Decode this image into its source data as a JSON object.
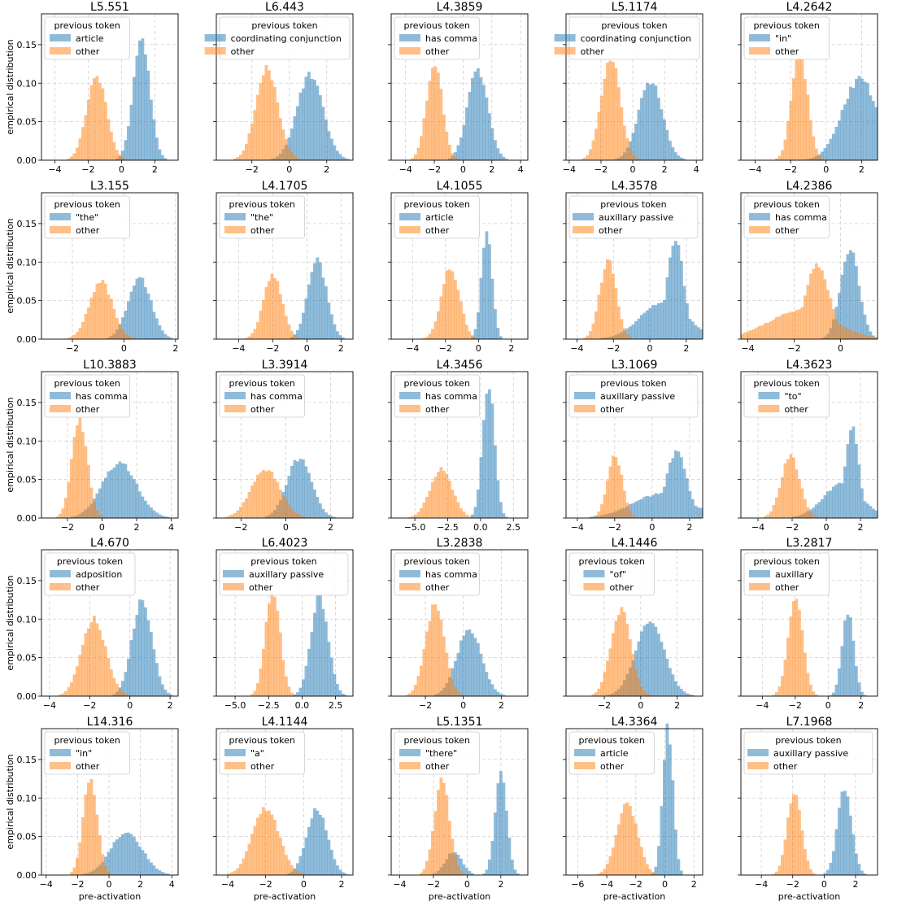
{
  "figure": {
    "ylabel": "empirical distribution",
    "xlabel": "pre-activation",
    "legend_title": "previous token",
    "colors": {
      "feature": "#1f77b4",
      "other": "#ff7f0e",
      "feature_alpha": 0.5,
      "other_alpha": 0.5
    },
    "ylim": [
      0,
      0.19
    ],
    "yticks": [
      "0.00",
      "0.05",
      "0.10",
      "0.15"
    ]
  },
  "chart_data": [
    {
      "type": "histogram",
      "title": "L5.551",
      "xlim": [
        -4.8,
        3.4
      ],
      "xticks": [
        "-4",
        "-2",
        "0",
        "2"
      ],
      "grid": true,
      "legend": "upper left",
      "series": [
        {
          "name": "article",
          "mean": 1.2,
          "sd": 0.5,
          "peak": 0.157
        },
        {
          "name": "other",
          "mean": -1.5,
          "sd": 0.6,
          "peak": 0.11
        }
      ]
    },
    {
      "type": "histogram",
      "title": "L6.443",
      "xlim": [
        -3.9,
        3.4
      ],
      "xticks": [
        "-2",
        "0",
        "2"
      ],
      "grid": true,
      "legend": "upper center",
      "series": [
        {
          "name": "coordinating conjunction",
          "mean": 1.1,
          "sd": 0.7,
          "peak": 0.11
        },
        {
          "name": "other",
          "mean": -1.2,
          "sd": 0.6,
          "peak": 0.118
        }
      ]
    },
    {
      "type": "histogram",
      "title": "L4.3859",
      "xlim": [
        -5.0,
        4.5
      ],
      "xticks": [
        "-4",
        "-2",
        "0",
        "2",
        "4"
      ],
      "grid": true,
      "legend": "upper left",
      "series": [
        {
          "name": "has comma",
          "mean": 1.0,
          "sd": 0.7,
          "peak": 0.12
        },
        {
          "name": "other",
          "mean": -2.0,
          "sd": 0.55,
          "peak": 0.128
        }
      ]
    },
    {
      "type": "histogram",
      "title": "L5.1174",
      "xlim": [
        -4.2,
        4.4
      ],
      "xticks": [
        "-4",
        "-2",
        "0",
        "2",
        "4"
      ],
      "grid": true,
      "legend": "upper center",
      "series": [
        {
          "name": "coordinating conjunction",
          "mean": 1.1,
          "sd": 0.75,
          "peak": 0.103
        },
        {
          "name": "other",
          "mean": -1.4,
          "sd": 0.6,
          "peak": 0.134
        }
      ]
    },
    {
      "type": "histogram",
      "title": "L4.2642",
      "xlim": [
        -4.8,
        2.9
      ],
      "xticks": [
        "-4",
        "-2",
        "0",
        "2"
      ],
      "grid": true,
      "legend": "upper left",
      "series": [
        {
          "name": "\"in\"",
          "mean": 1.9,
          "sd": 1.0,
          "peak": 0.105
        },
        {
          "name": "other",
          "mean": -1.5,
          "sd": 0.45,
          "peak": 0.14
        }
      ]
    },
    {
      "type": "histogram",
      "title": "L3.155",
      "xlim": [
        -3.2,
        2.1
      ],
      "xticks": [
        "-2",
        "0",
        "2"
      ],
      "grid": true,
      "legend": "upper left",
      "series": [
        {
          "name": "\"the\"",
          "mean": 0.6,
          "sd": 0.45,
          "peak": 0.08
        },
        {
          "name": "other",
          "mean": -0.9,
          "sd": 0.45,
          "peak": 0.075
        }
      ]
    },
    {
      "type": "histogram",
      "title": "L4.1705",
      "xlim": [
        -5.3,
        2.7
      ],
      "xticks": [
        "-4",
        "-2",
        "0",
        "2"
      ],
      "grid": true,
      "legend": "upper left",
      "series": [
        {
          "name": "\"the\"",
          "mean": 0.6,
          "sd": 0.55,
          "peak": 0.102
        },
        {
          "name": "other",
          "mean": -2.0,
          "sd": 0.55,
          "peak": 0.084
        }
      ]
    },
    {
      "type": "histogram",
      "title": "L4.1055",
      "xlim": [
        -5.3,
        3.0
      ],
      "xticks": [
        "-4",
        "-2",
        "0",
        "2"
      ],
      "grid": true,
      "legend": "upper left",
      "series": [
        {
          "name": "article",
          "mean": 0.5,
          "sd": 0.32,
          "peak": 0.14
        },
        {
          "name": "other",
          "mean": -1.7,
          "sd": 0.55,
          "peak": 0.093
        }
      ]
    },
    {
      "type": "histogram",
      "title": "L4.3578",
      "xlim": [
        -4.6,
        2.9
      ],
      "xticks": [
        "-4",
        "-2",
        "0",
        "2"
      ],
      "grid": true,
      "legend": "upper center",
      "series": [
        {
          "name": "auxillary passive",
          "mean": 1.4,
          "sd": 0.45,
          "peak": 0.128,
          "skew": "left"
        },
        {
          "name": "other",
          "mean": -2.3,
          "sd": 0.45,
          "peak": 0.103
        }
      ]
    },
    {
      "type": "histogram",
      "title": "L4.2386",
      "xlim": [
        -4.3,
        1.6
      ],
      "xticks": [
        "-4",
        "-2",
        "0"
      ],
      "grid": true,
      "legend": "upper left",
      "series": [
        {
          "name": "has comma",
          "mean": 0.4,
          "sd": 0.4,
          "peak": 0.118
        },
        {
          "name": "other",
          "mean": -1.0,
          "sd": 0.5,
          "peak": 0.098,
          "skew": "left"
        }
      ]
    },
    {
      "type": "histogram",
      "title": "L10.3883",
      "xlim": [
        -3.5,
        4.4
      ],
      "xticks": [
        "-2",
        "0",
        "2",
        "4"
      ],
      "grid": true,
      "legend": "upper left",
      "series": [
        {
          "name": "has comma",
          "mean": 1.0,
          "sd": 1.0,
          "peak": 0.072
        },
        {
          "name": "other",
          "mean": -1.3,
          "sd": 0.45,
          "peak": 0.128
        }
      ]
    },
    {
      "type": "histogram",
      "title": "L3.3914",
      "xlim": [
        -3.1,
        3.0
      ],
      "xticks": [
        "-2",
        "0",
        "2"
      ],
      "grid": true,
      "legend": "upper left",
      "series": [
        {
          "name": "has comma",
          "mean": 0.6,
          "sd": 0.55,
          "peak": 0.078
        },
        {
          "name": "other",
          "mean": -0.9,
          "sd": 0.65,
          "peak": 0.063
        }
      ]
    },
    {
      "type": "histogram",
      "title": "L4.3456",
      "xlim": [
        -6.8,
        3.6
      ],
      "xticks": [
        "-5.0",
        "-2.5",
        "0.0",
        "2.5"
      ],
      "grid": true,
      "legend": "upper left",
      "series": [
        {
          "name": "has comma",
          "mean": 0.6,
          "sd": 0.45,
          "peak": 0.177
        },
        {
          "name": "other",
          "mean": -3.0,
          "sd": 0.85,
          "peak": 0.063
        }
      ]
    },
    {
      "type": "histogram",
      "title": "L3.1069",
      "xlim": [
        -4.6,
        2.7
      ],
      "xticks": [
        "-4",
        "-2",
        "0",
        "2"
      ],
      "grid": true,
      "legend": "upper left",
      "series": [
        {
          "name": "auxillary passive",
          "mean": 1.3,
          "sd": 0.55,
          "peak": 0.084,
          "skew": "left"
        },
        {
          "name": "other",
          "mean": -2.0,
          "sd": 0.4,
          "peak": 0.082
        }
      ]
    },
    {
      "type": "histogram",
      "title": "L4.3623",
      "xlim": [
        -5.0,
        3.0
      ],
      "xticks": [
        "-4",
        "-2",
        "0",
        "2"
      ],
      "grid": true,
      "legend": "upper center",
      "series": [
        {
          "name": "\"to\"",
          "mean": 1.5,
          "sd": 0.4,
          "peak": 0.117,
          "skew": "left"
        },
        {
          "name": "other",
          "mean": -2.1,
          "sd": 0.55,
          "peak": 0.08
        }
      ]
    },
    {
      "type": "histogram",
      "title": "L4.670",
      "xlim": [
        -4.4,
        2.4
      ],
      "xticks": [
        "-4",
        "-2",
        "0",
        "2"
      ],
      "grid": true,
      "legend": "upper left",
      "series": [
        {
          "name": "adposition",
          "mean": 0.6,
          "sd": 0.5,
          "peak": 0.125
        },
        {
          "name": "other",
          "mean": -1.8,
          "sd": 0.6,
          "peak": 0.1
        }
      ]
    },
    {
      "type": "histogram",
      "title": "L6.4023",
      "xlim": [
        -6.4,
        3.8
      ],
      "xticks": [
        "-5.0",
        "-2.5",
        "0.0",
        "2.5"
      ],
      "grid": true,
      "legend": "upper center",
      "series": [
        {
          "name": "auxillary passive",
          "mean": 1.3,
          "sd": 0.65,
          "peak": 0.128
        },
        {
          "name": "other",
          "mean": -2.2,
          "sd": 0.55,
          "peak": 0.138
        }
      ]
    },
    {
      "type": "histogram",
      "title": "L3.2838",
      "xlim": [
        -3.8,
        3.4
      ],
      "xticks": [
        "-2",
        "0",
        "2"
      ],
      "grid": true,
      "legend": "upper left",
      "series": [
        {
          "name": "has comma",
          "mean": 0.3,
          "sd": 0.65,
          "peak": 0.087
        },
        {
          "name": "other",
          "mean": -1.5,
          "sd": 0.5,
          "peak": 0.118
        }
      ]
    },
    {
      "type": "histogram",
      "title": "L4.1446",
      "xlim": [
        -4.1,
        3.4
      ],
      "xticks": [
        "-2",
        "0",
        "2"
      ],
      "grid": true,
      "legend": "upper center",
      "series": [
        {
          "name": "\"of\"",
          "mean": 0.5,
          "sd": 0.8,
          "peak": 0.095
        },
        {
          "name": "other",
          "mean": -1.1,
          "sd": 0.55,
          "peak": 0.112
        }
      ]
    },
    {
      "type": "histogram",
      "title": "L3.2817",
      "xlim": [
        -5.3,
        3.0
      ],
      "xticks": [
        "-4",
        "-2",
        "0",
        "2"
      ],
      "grid": true,
      "legend": "upper left",
      "series": [
        {
          "name": "auxillary",
          "mean": 1.2,
          "sd": 0.35,
          "peak": 0.111
        },
        {
          "name": "other",
          "mean": -2.0,
          "sd": 0.45,
          "peak": 0.128
        }
      ]
    },
    {
      "type": "histogram",
      "title": "L14.316",
      "xlim": [
        -4.3,
        4.4
      ],
      "xticks": [
        "-4",
        "-2",
        "0",
        "2",
        "4"
      ],
      "grid": true,
      "legend": "upper left",
      "series": [
        {
          "name": "\"in\"",
          "mean": 1.1,
          "sd": 1.0,
          "peak": 0.056
        },
        {
          "name": "other",
          "mean": -1.2,
          "sd": 0.45,
          "peak": 0.125
        }
      ]
    },
    {
      "type": "histogram",
      "title": "L4.1144",
      "xlim": [
        -4.6,
        2.6
      ],
      "xticks": [
        "-4",
        "-2",
        "0",
        "2"
      ],
      "grid": true,
      "legend": "upper left",
      "series": [
        {
          "name": "\"a\"",
          "mean": 0.7,
          "sd": 0.55,
          "peak": 0.085
        },
        {
          "name": "other",
          "mean": -2.0,
          "sd": 0.7,
          "peak": 0.087
        }
      ]
    },
    {
      "type": "histogram",
      "title": "L5.1351",
      "xlim": [
        -4.5,
        3.6
      ],
      "xticks": [
        "-4",
        "-2",
        "0",
        "2"
      ],
      "grid": true,
      "legend": "upper left",
      "series": [
        {
          "name": "\"there\"",
          "mean": 2.0,
          "sd": 0.35,
          "peak": 0.13,
          "secondary": {
            "mean": -0.8,
            "sd": 0.5,
            "peak": 0.03
          }
        },
        {
          "name": "other",
          "mean": -1.5,
          "sd": 0.45,
          "peak": 0.124
        }
      ]
    },
    {
      "type": "histogram",
      "title": "L4.3364",
      "xlim": [
        -6.8,
        2.6
      ],
      "xticks": [
        "-6",
        "-4",
        "-2",
        "0",
        "2"
      ],
      "grid": true,
      "legend": "upper left",
      "series": [
        {
          "name": "article",
          "mean": 0.2,
          "sd": 0.35,
          "peak": 0.19
        },
        {
          "name": "other",
          "mean": -2.6,
          "sd": 0.7,
          "peak": 0.095
        }
      ]
    },
    {
      "type": "histogram",
      "title": "L7.1968",
      "xlim": [
        -5.3,
        3.4
      ],
      "xticks": [
        "-4",
        "-2",
        "0",
        "2"
      ],
      "grid": true,
      "legend": "upper center",
      "series": [
        {
          "name": "auxillary passive",
          "mean": 1.3,
          "sd": 0.45,
          "peak": 0.113
        },
        {
          "name": "other",
          "mean": -1.9,
          "sd": 0.45,
          "peak": 0.11
        }
      ]
    }
  ]
}
